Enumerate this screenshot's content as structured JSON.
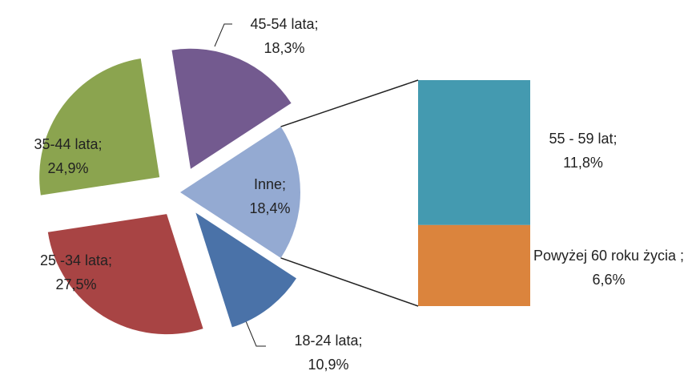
{
  "chart_data": {
    "type": "pie_of_bar",
    "categories": [
      "18-24 lata;",
      "25 -34 lata;",
      "35-44 lata;",
      "45-54 lata;",
      "Inne;"
    ],
    "values": [
      10.9,
      27.5,
      24.9,
      18.3,
      18.4
    ],
    "value_labels": [
      "10,9%",
      "27,5%",
      "24,9%",
      "18,3%",
      "18,4%"
    ],
    "colors": [
      "#4a72a8",
      "#a84444",
      "#8ba44f",
      "#735a8f",
      "#94aad2"
    ],
    "bar": {
      "categories": [
        "55 - 59 lat;",
        "Powyżej 60 roku życia ;"
      ],
      "values": [
        11.8,
        6.6
      ],
      "value_labels": [
        "11,8%",
        "6,6%"
      ],
      "colors": [
        "#449ab0",
        "#db843d"
      ]
    }
  }
}
